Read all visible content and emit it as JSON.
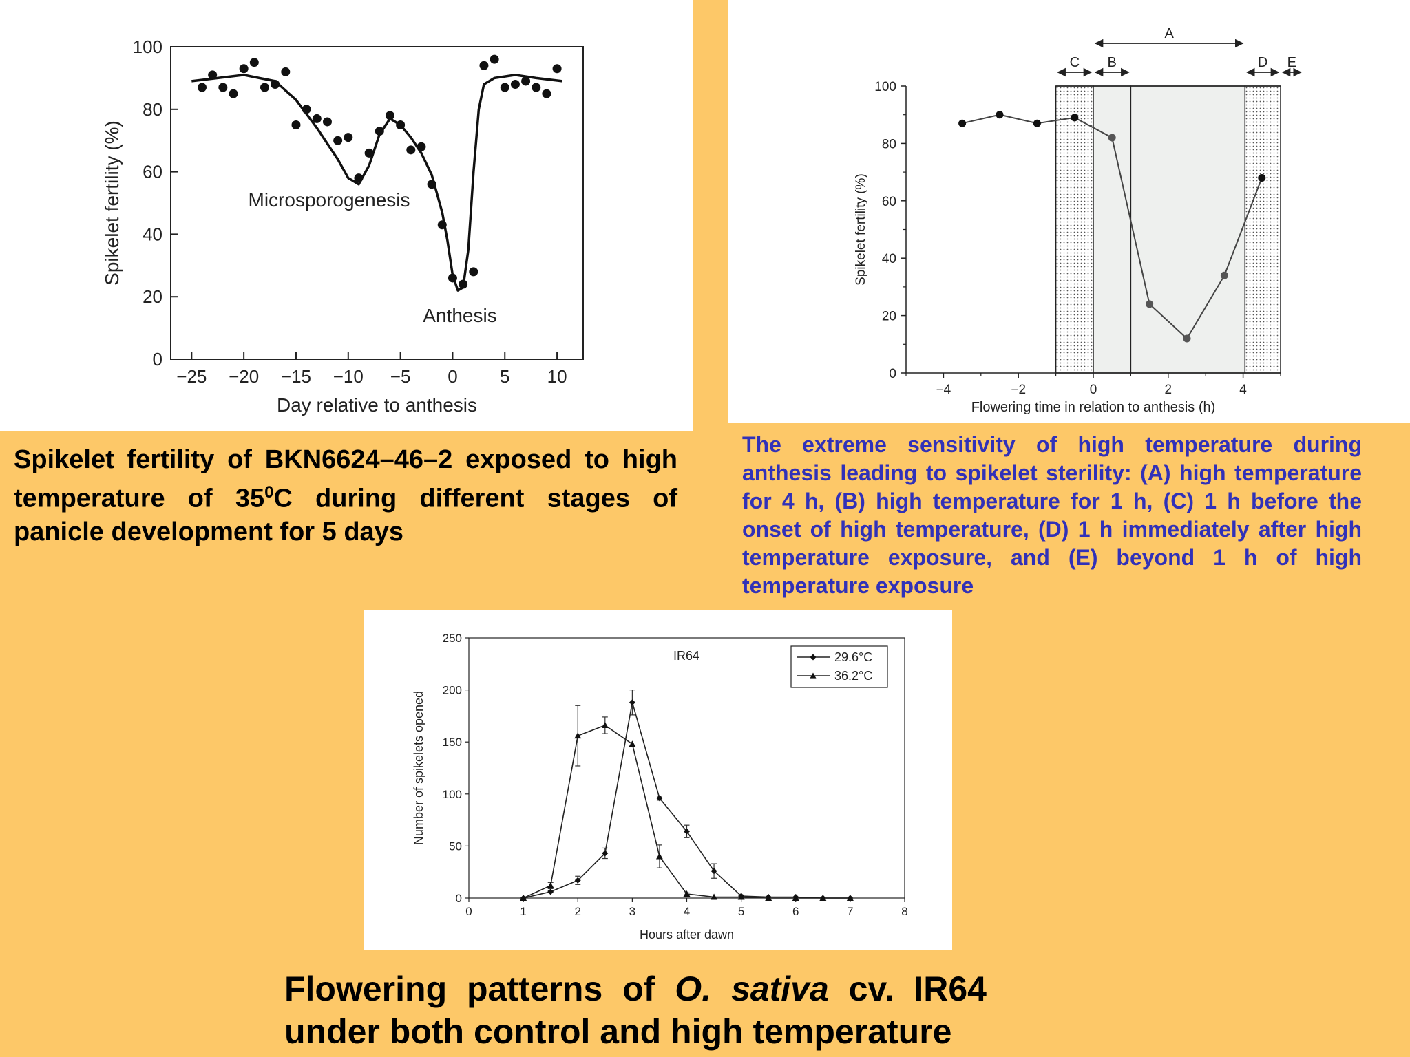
{
  "chart_data": [
    {
      "type": "scatter",
      "title": "",
      "xlabel": "Day relative to anthesis",
      "ylabel": "Spikelet fertility (%)",
      "xlim": [
        -27,
        12.5
      ],
      "ylim": [
        0,
        100
      ],
      "xticks": [
        -25,
        -20,
        -15,
        -10,
        -5,
        0,
        5,
        10
      ],
      "yticks": [
        0,
        20,
        40,
        60,
        80,
        100
      ],
      "points_x": [
        -24,
        -23,
        -22,
        -21,
        -20,
        -19,
        -18,
        -17,
        -16,
        -15,
        -14,
        -13,
        -12,
        -11,
        -10,
        -9,
        -8,
        -7,
        -6,
        -5,
        -4,
        -3,
        -2,
        -1,
        0,
        1,
        2,
        3,
        4,
        5,
        6,
        7,
        8,
        9,
        10
      ],
      "points_y": [
        87,
        91,
        87,
        85,
        93,
        95,
        87,
        88,
        92,
        75,
        80,
        77,
        76,
        70,
        71,
        58,
        66,
        73,
        78,
        75,
        67,
        68,
        56,
        43,
        26,
        24,
        28,
        94,
        96,
        87,
        88,
        89,
        87,
        85,
        93
      ],
      "fit_x": [
        -25,
        -20,
        -17,
        -15,
        -13,
        -11,
        -10,
        -9,
        -8,
        -7,
        -6,
        -5,
        -4,
        -3,
        -2,
        -1,
        -0.5,
        0,
        0.5,
        1,
        1.5,
        2,
        2.5,
        3,
        4,
        6,
        8,
        10.5
      ],
      "fit_y": [
        89,
        91,
        89,
        83,
        74,
        64,
        58,
        56,
        62,
        72,
        77,
        75,
        71,
        66,
        59,
        47,
        38,
        27,
        22,
        23,
        35,
        60,
        80,
        88,
        90,
        91,
        90,
        89
      ],
      "annotations": [
        "Microsporogenesis",
        "Anthesis"
      ]
    },
    {
      "type": "line",
      "title": "",
      "xlabel": "Flowering time in relation to anthesis (h)",
      "ylabel": "Spikelet fertility (%)",
      "xlim": [
        -5,
        5
      ],
      "ylim": [
        0,
        100
      ],
      "xticks": [
        -4,
        -2,
        0,
        2,
        4
      ],
      "yticks": [
        0,
        20,
        40,
        60,
        80,
        100
      ],
      "x": [
        -3.5,
        -2.5,
        -1.5,
        -0.5,
        0.5,
        1.5,
        2.5,
        3.5,
        4.5
      ],
      "y": [
        87,
        90,
        87,
        89,
        82,
        24,
        12,
        34,
        68
      ],
      "regions": [
        {
          "from": -1,
          "to": 0,
          "style": "dotted"
        },
        {
          "from": 0,
          "to": 1,
          "style": "light"
        },
        {
          "from": 1,
          "to": 4.05,
          "style": "light"
        },
        {
          "from": 4.05,
          "to": 5,
          "style": "dotted"
        }
      ],
      "arrows": [
        {
          "label": "A",
          "from": 0,
          "to": 4.05
        },
        {
          "label": "C",
          "from": -1,
          "to": 0
        },
        {
          "label": "B",
          "from": 0,
          "to": 1
        },
        {
          "label": "D",
          "from": 4.05,
          "to": 5
        },
        {
          "label": "E",
          "from": 5,
          "to": 5.6
        }
      ]
    },
    {
      "type": "line",
      "title": "IR64",
      "xlabel": "Hours after dawn",
      "ylabel": "Number of spikelets opened",
      "xlim": [
        0,
        8
      ],
      "ylim": [
        0,
        250
      ],
      "xticks": [
        0,
        1,
        2,
        3,
        4,
        5,
        6,
        7,
        8
      ],
      "yticks": [
        0,
        50,
        100,
        150,
        200,
        250
      ],
      "legend_position": "top-right",
      "x": [
        1,
        1.5,
        2,
        2.5,
        3,
        3.5,
        4,
        4.5,
        5,
        5.5,
        6,
        6.5,
        7
      ],
      "series": [
        {
          "name": "29.6°C",
          "marker": "diamond",
          "values": [
            0,
            6,
            17,
            43,
            188,
            96,
            64,
            26,
            2,
            1,
            1,
            0,
            0
          ],
          "errors": [
            0,
            1,
            4,
            5,
            12,
            2,
            6,
            7,
            1,
            0,
            0,
            0,
            0
          ]
        },
        {
          "name": "36.2°C",
          "marker": "triangle",
          "values": [
            0,
            12,
            156,
            166,
            148,
            40,
            4,
            1,
            1,
            0,
            0,
            0,
            0
          ],
          "errors": [
            0,
            3,
            29,
            8,
            0,
            11,
            1,
            0,
            0,
            0,
            0,
            0,
            0
          ]
        }
      ]
    }
  ],
  "captions": {
    "c1_pre": "Spikelet fertility of BKN6624–46–2 exposed to high temperature of 35",
    "c1_sup": "0",
    "c1_post": "C during different stages of panicle development for 5 days",
    "c2": "The extreme sensitivity of high temperature during anthesis leading to spikelet sterility: (A) high temperature for 4 h, (B) high temperature for 1 h, (C) 1 h before the onset of high temperature, (D) 1 h immediately after high temperature exposure, and (E) beyond 1 h of high temperature exposure",
    "c3_pre": "Flowering patterns of ",
    "c3_italic": "O. sativa",
    "c3_post": " cv. IR64 under both control and high temperature"
  }
}
